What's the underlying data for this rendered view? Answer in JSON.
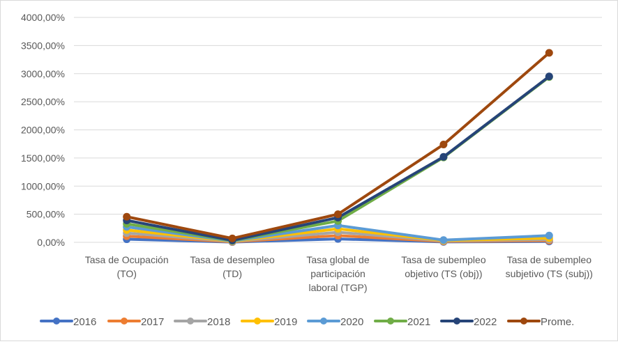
{
  "chart_data": {
    "type": "line",
    "stacked": true,
    "title": "",
    "xlabel": "",
    "ylabel": "",
    "ylim": [
      0,
      4000
    ],
    "y_ticks": [
      "0,00%",
      "500,00%",
      "1000,00%",
      "1500,00%",
      "2000,00%",
      "2500,00%",
      "3000,00%",
      "3500,00%",
      "4000,00%"
    ],
    "y_tick_values": [
      0,
      500,
      1000,
      1500,
      2000,
      2500,
      3000,
      3500,
      4000
    ],
    "grid": true,
    "legend_position": "bottom",
    "categories": [
      [
        "Tasa de Ocupación",
        "(TO)"
      ],
      [
        "Tasa de desempleo",
        "(TD)"
      ],
      [
        "Tasa global de",
        "participación",
        "laboral (TGP)"
      ],
      [
        "Tasa de subempleo",
        "objetivo (TS (obj))"
      ],
      [
        "Tasa de subempleo",
        "subjetivo (TS (subj))"
      ]
    ],
    "series": [
      {
        "name": "2016",
        "color": "#4472C4",
        "values": [
          55,
          5,
          60,
          8,
          15
        ]
      },
      {
        "name": "2017",
        "color": "#ED7D31",
        "values": [
          55,
          5,
          60,
          8,
          15
        ]
      },
      {
        "name": "2018",
        "color": "#A5A5A5",
        "values": [
          55,
          5,
          60,
          8,
          20
        ]
      },
      {
        "name": "2019",
        "color": "#FFC000",
        "values": [
          55,
          5,
          60,
          8,
          25
        ]
      },
      {
        "name": "2020",
        "color": "#5B9BD5",
        "values": [
          55,
          5,
          60,
          8,
          45
        ]
      },
      {
        "name": "2021",
        "color": "#70AD47",
        "values": [
          55,
          5,
          80,
          1470,
          2820
        ]
      },
      {
        "name": "2022",
        "color": "#264478",
        "values": [
          60,
          5,
          60,
          10,
          10
        ]
      },
      {
        "name": "Prome.",
        "color": "#9E480E",
        "values": [
          65,
          35,
          60,
          220,
          420
        ]
      }
    ]
  }
}
